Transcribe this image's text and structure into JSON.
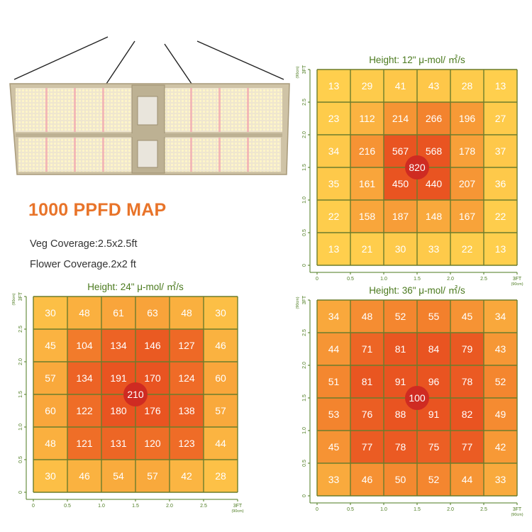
{
  "headline": "1000 PPFD MAP",
  "veg_coverage": "Veg Coverage:2.5x2.5ft",
  "flower_coverage": "Flower Coverage.2x2 ft",
  "chart_data": [
    {
      "type": "heatmap",
      "title": "Height: 12\" μ-mol/ ㎡/s",
      "x_ticks": [
        "0",
        "0.5",
        "1.0",
        "1.5",
        "2.0",
        "2.5",
        "3FT"
      ],
      "x_unit": "(90cm)",
      "y_ticks": [
        "0",
        "0.5",
        "1.0",
        "1.5",
        "2.0",
        "2.5",
        "3FT"
      ],
      "y_unit": "(90cm)",
      "grid": true,
      "rows": [
        [
          13,
          29,
          41,
          43,
          28,
          13
        ],
        [
          23,
          112,
          214,
          266,
          196,
          27
        ],
        [
          34,
          216,
          567,
          568,
          178,
          37
        ],
        [
          35,
          161,
          450,
          440,
          207,
          36
        ],
        [
          22,
          158,
          187,
          148,
          167,
          22
        ],
        [
          13,
          21,
          30,
          33,
          22,
          13
        ]
      ],
      "center_value": 820
    },
    {
      "type": "heatmap",
      "title": "Height: 24\" μ-mol/ ㎡/s",
      "x_ticks": [
        "0",
        "0.5",
        "1.0",
        "1.5",
        "2.0",
        "2.5",
        "3FT"
      ],
      "x_unit": "(90cm)",
      "y_ticks": [
        "0",
        "0.5",
        "1.0",
        "1.5",
        "2.0",
        "2.5",
        "3FT"
      ],
      "y_unit": "(90cm)",
      "grid": true,
      "rows": [
        [
          30,
          48,
          61,
          63,
          48,
          30
        ],
        [
          45,
          104,
          134,
          146,
          127,
          46
        ],
        [
          57,
          134,
          191,
          170,
          124,
          60
        ],
        [
          60,
          122,
          180,
          176,
          138,
          57
        ],
        [
          48,
          121,
          131,
          120,
          123,
          44
        ],
        [
          30,
          46,
          54,
          57,
          42,
          28
        ]
      ],
      "center_value": 210
    },
    {
      "type": "heatmap",
      "title": "Height: 36\" μ-mol/ ㎡/s",
      "x_ticks": [
        "0",
        "0.5",
        "1.0",
        "1.5",
        "2.0",
        "2.5",
        "3FT"
      ],
      "x_unit": "(90cm)",
      "y_ticks": [
        "0",
        "0.5",
        "1.0",
        "1.5",
        "2.0",
        "2.5",
        "3FT"
      ],
      "y_unit": "(90cm)",
      "grid": true,
      "rows": [
        [
          34,
          48,
          52,
          55,
          45,
          34
        ],
        [
          44,
          71,
          81,
          84,
          79,
          43
        ],
        [
          51,
          81,
          91,
          96,
          78,
          52
        ],
        [
          53,
          76,
          88,
          91,
          82,
          49
        ],
        [
          45,
          77,
          78,
          75,
          77,
          42
        ],
        [
          33,
          46,
          50,
          52,
          44,
          33
        ]
      ],
      "center_value": 100
    }
  ]
}
